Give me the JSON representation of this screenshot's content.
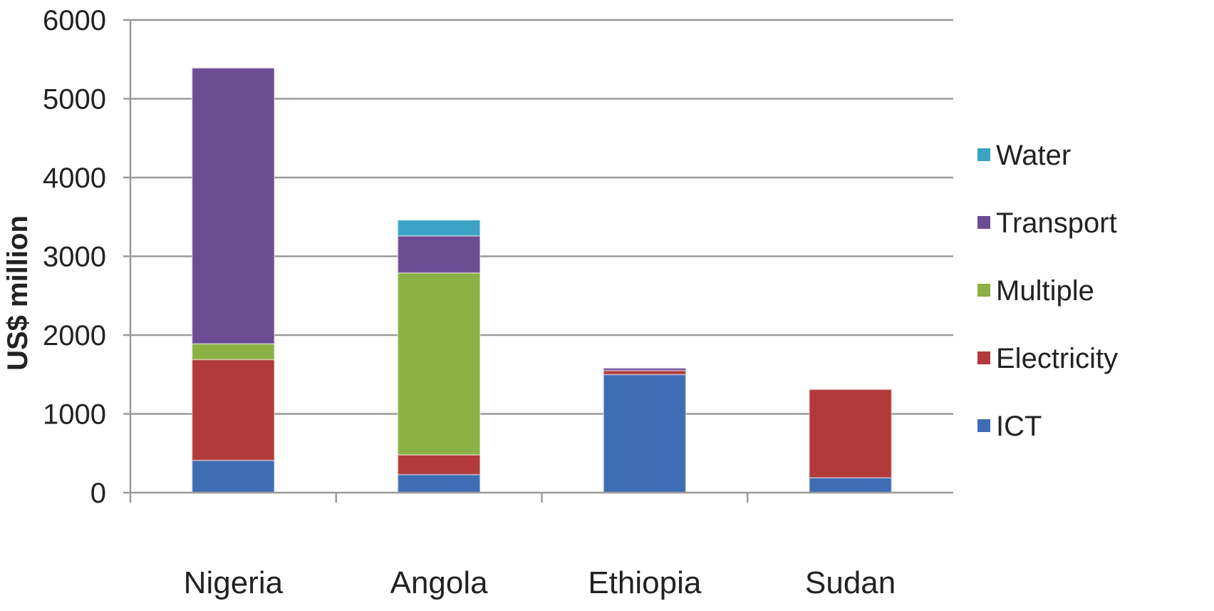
{
  "chart_data": {
    "type": "bar",
    "stacked": true,
    "categories": [
      "Nigeria",
      "Angola",
      "Ethiopia",
      "Sudan"
    ],
    "series": [
      {
        "name": "ICT",
        "color": "#3F6DB5",
        "values": [
          410,
          230,
          1500,
          190
        ]
      },
      {
        "name": "Electricity",
        "color": "#B23A3A",
        "values": [
          1280,
          250,
          50,
          1120
        ]
      },
      {
        "name": "Multiple",
        "color": "#8BB043",
        "values": [
          200,
          2310,
          0,
          0
        ]
      },
      {
        "name": "Transport",
        "color": "#6C4C93",
        "values": [
          3500,
          470,
          30,
          0
        ]
      },
      {
        "name": "Water",
        "color": "#3AA2C4",
        "values": [
          0,
          200,
          0,
          0
        ]
      }
    ],
    "ylabel": "US$ million",
    "xlabel": "",
    "title": "",
    "ylim": [
      0,
      6000
    ],
    "yticks": [
      0,
      1000,
      2000,
      3000,
      4000,
      5000,
      6000
    ],
    "grid": true,
    "legend_position": "right",
    "legend_order": [
      "Water",
      "Transport",
      "Multiple",
      "Electricity",
      "ICT"
    ]
  }
}
